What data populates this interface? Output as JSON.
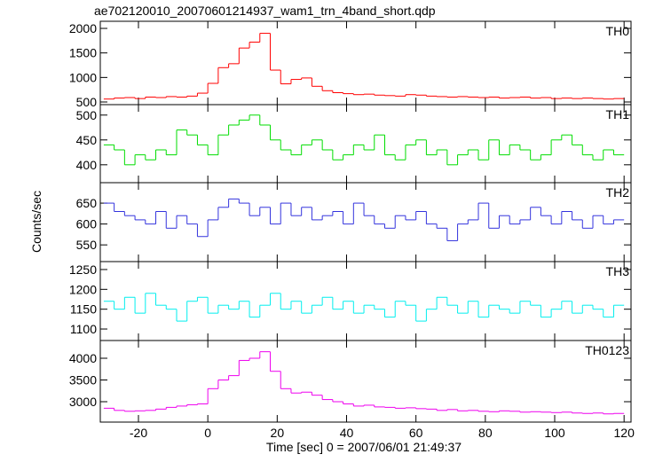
{
  "chart_data": {
    "type": "step",
    "title": "ae702120010_20070601214937_wam1_trn_4band_short.qdp",
    "x_label": "Time [sec] 0 = 2007/06/01 21:49:37",
    "y_label": "Counts/sec",
    "xlim": [
      -31,
      122
    ],
    "xticks": [
      -20,
      0,
      20,
      40,
      60,
      80,
      100,
      120
    ],
    "x": [
      -30,
      -27,
      -24,
      -21,
      -18,
      -15,
      -12,
      -9,
      -6,
      -3,
      0,
      3,
      6,
      9,
      12,
      15,
      18,
      21,
      24,
      27,
      30,
      33,
      36,
      39,
      42,
      45,
      48,
      51,
      54,
      57,
      60,
      63,
      66,
      69,
      72,
      75,
      78,
      81,
      84,
      87,
      90,
      93,
      96,
      99,
      102,
      105,
      108,
      111,
      114,
      117
    ],
    "series": [
      {
        "name": "TH0",
        "color": "#ff0000",
        "ylim": [
          446,
          2145
        ],
        "yticks": [
          500,
          1000,
          1500,
          2000
        ],
        "values": [
          560,
          580,
          590,
          570,
          600,
          590,
          610,
          600,
          620,
          680,
          880,
          1200,
          1280,
          1600,
          1720,
          1900,
          1150,
          870,
          960,
          990,
          820,
          730,
          690,
          670,
          650,
          660,
          640,
          630,
          620,
          650,
          640,
          620,
          610,
          600,
          610,
          600,
          590,
          600,
          580,
          590,
          600,
          580,
          590,
          570,
          580,
          570,
          580,
          570,
          560,
          570
        ]
      },
      {
        "name": "TH1",
        "color": "#00dd00",
        "ylim": [
          364,
          521
        ],
        "yticks": [
          400,
          450,
          500
        ],
        "values": [
          440,
          430,
          400,
          420,
          410,
          430,
          420,
          470,
          460,
          440,
          420,
          460,
          480,
          490,
          500,
          480,
          450,
          430,
          420,
          440,
          450,
          430,
          410,
          420,
          440,
          430,
          460,
          420,
          410,
          440,
          450,
          420,
          430,
          400,
          420,
          430,
          410,
          450,
          420,
          440,
          430,
          410,
          420,
          450,
          460,
          440,
          420,
          410,
          430,
          420
        ]
      },
      {
        "name": "TH2",
        "color": "#3333dd",
        "ylim": [
          510,
          699
        ],
        "yticks": [
          550,
          600,
          650
        ],
        "values": [
          650,
          630,
          620,
          610,
          600,
          630,
          590,
          620,
          600,
          570,
          610,
          640,
          660,
          650,
          620,
          640,
          600,
          650,
          620,
          640,
          610,
          620,
          630,
          600,
          650,
          620,
          600,
          590,
          620,
          610,
          630,
          600,
          590,
          560,
          600,
          610,
          650,
          590,
          620,
          600,
          610,
          640,
          620,
          600,
          630,
          610,
          590,
          620,
          600,
          610
        ]
      },
      {
        "name": "TH3",
        "color": "#00eeee",
        "ylim": [
          1071,
          1270
        ],
        "yticks": [
          1100,
          1150,
          1200,
          1250
        ],
        "values": [
          1170,
          1150,
          1180,
          1140,
          1190,
          1160,
          1150,
          1120,
          1170,
          1180,
          1140,
          1160,
          1150,
          1170,
          1130,
          1160,
          1190,
          1150,
          1170,
          1140,
          1160,
          1180,
          1150,
          1170,
          1140,
          1160,
          1150,
          1130,
          1170,
          1160,
          1120,
          1150,
          1180,
          1160,
          1140,
          1170,
          1130,
          1160,
          1150,
          1140,
          1170,
          1160,
          1130,
          1150,
          1170,
          1140,
          1160,
          1150,
          1130,
          1160
        ]
      },
      {
        "name": "TH0123",
        "color": "#ee00ee",
        "ylim": [
          2531,
          4408
        ],
        "yticks": [
          3000,
          3500,
          4000
        ],
        "values": [
          2850,
          2800,
          2780,
          2790,
          2800,
          2830,
          2870,
          2900,
          2930,
          2950,
          3300,
          3500,
          3600,
          3950,
          4000,
          4150,
          3700,
          3300,
          3200,
          3220,
          3150,
          3050,
          3000,
          2950,
          2900,
          2920,
          2880,
          2870,
          2850,
          2860,
          2840,
          2830,
          2800,
          2820,
          2790,
          2800,
          2780,
          2770,
          2790,
          2780,
          2760,
          2770,
          2760,
          2750,
          2760,
          2740,
          2730,
          2740,
          2720,
          2730
        ]
      }
    ]
  }
}
